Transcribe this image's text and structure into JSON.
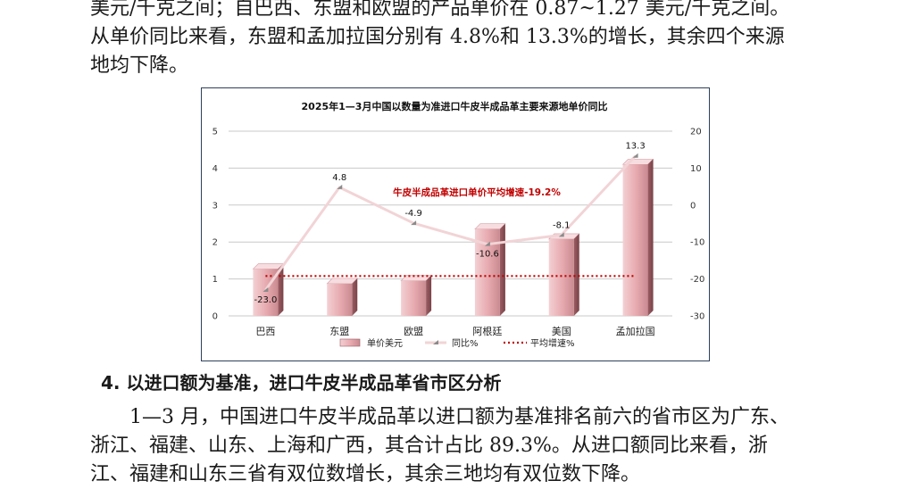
{
  "text": {
    "para_top_lines": [
      "美元/千克之间；自巴西、东盟和欧盟的产品单价在 0.87~1.27 美元/千克之间。",
      "从单价同比来看，东盟和孟加拉国分别有 4.8%和 13.3%的增长，其余四个来源",
      "地均下降。"
    ],
    "section_heading": "4. 以进口额为基准，进口牛皮半成品革省市区分析",
    "para_bottom_lines": [
      "1—3 月，中国进口牛皮半成品革以进口额为基准排名前六的省市区为广东、",
      "浙江、福建、山东、上海和广西，其合计占比 89.3%。从进口额同比来看，浙",
      "江、福建和山东三省有双位数增长，其余三地均有双位数下降。"
    ]
  },
  "chart_data": {
    "type": "bar",
    "title": "2025年1—3月中国以数量为准进口牛皮半成品革主要来源地单价同比",
    "categories": [
      "巴西",
      "东盟",
      "欧盟",
      "阿根廷",
      "美国",
      "孟加拉国"
    ],
    "y_left": {
      "range": [
        0,
        5
      ],
      "ticks": [
        "0",
        "1",
        "2",
        "3",
        "4",
        "5"
      ]
    },
    "y_right": {
      "range": [
        -30,
        20
      ],
      "ticks": [
        "-30",
        "-20",
        "-10",
        "0",
        "10",
        "20"
      ]
    },
    "grid": true,
    "legend_position": "bottom",
    "annotation": "牛皮半成品革进口单价平均增速-19.2%",
    "series": [
      {
        "name": "单价美元",
        "kind": "bar",
        "axis": "left",
        "values": [
          1.27,
          0.87,
          0.95,
          2.35,
          2.08,
          4.1
        ],
        "color": "#e8b4b8"
      },
      {
        "name": "同比%",
        "kind": "line",
        "axis": "right",
        "values": [
          -23.0,
          4.8,
          -4.9,
          -10.6,
          -8.1,
          13.3
        ],
        "labels": [
          "-23.0",
          "4.8",
          "-4.9",
          "-10.6",
          "-8.1",
          "13.3"
        ],
        "color": "#f2d4d6"
      },
      {
        "name": "平均增速%",
        "kind": "line",
        "style": "dotted",
        "axis": "right",
        "values": [
          -19.2,
          -19.2,
          -19.2,
          -19.2,
          -19.2,
          -19.2
        ],
        "color": "#c00000"
      }
    ]
  }
}
